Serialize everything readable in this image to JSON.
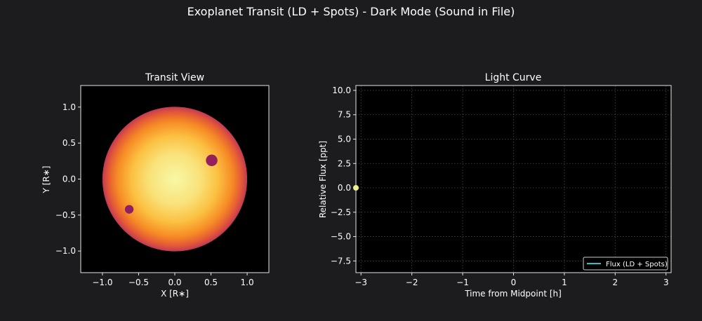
{
  "figure": {
    "suptitle": "Exoplanet Transit (LD + Spots) - Dark Mode (Sound in File)",
    "background_color": "#1c1b1e",
    "axes_background": "#000000",
    "text_color": "#ffffff"
  },
  "chart_data": [
    {
      "type": "heatmap",
      "title": "Transit View",
      "xlabel": "X [R∗]",
      "ylabel": "Y [R∗]",
      "xlim": [
        -1.3,
        1.3
      ],
      "ylim": [
        -1.3,
        1.3
      ],
      "xticks": [
        -1.0,
        -0.5,
        0.0,
        0.5,
        1.0
      ],
      "xtick_labels": [
        "−1.0",
        "−0.5",
        "0.0",
        "0.5",
        "1.0"
      ],
      "yticks": [
        -1.0,
        -0.5,
        0.0,
        0.5,
        1.0
      ],
      "ytick_labels": [
        "−1.0",
        "−0.5",
        "0.0",
        "0.5",
        "1.0"
      ],
      "star": {
        "center": [
          0.0,
          0.0
        ],
        "radius": 1.0,
        "colormap": "inferno",
        "limb_darkening": true,
        "center_color": "#f7f8a6",
        "edge_color": "#c23a55"
      },
      "spots": [
        {
          "x": 0.51,
          "y": 0.26,
          "radius": 0.08,
          "color": "#94215c"
        },
        {
          "x": -0.63,
          "y": -0.42,
          "radius": 0.06,
          "color": "#8e2061"
        }
      ]
    },
    {
      "type": "line",
      "title": "Light Curve",
      "xlabel": "Time from Midpoint [h]",
      "ylabel": "Relative Flux [ppt]",
      "xlim": [
        -3.1,
        3.1
      ],
      "ylim": [
        -8.7,
        10.5
      ],
      "xticks": [
        -3,
        -2,
        -1,
        0,
        1,
        2,
        3
      ],
      "xtick_labels": [
        "−3",
        "−2",
        "−1",
        "0",
        "1",
        "2",
        "3"
      ],
      "yticks": [
        -7.5,
        -5.0,
        -2.5,
        0.0,
        2.5,
        5.0,
        7.5,
        10.0
      ],
      "ytick_labels": [
        "−7.5",
        "−5.0",
        "−2.5",
        "0.0",
        "2.5",
        "5.0",
        "7.5",
        "10.0"
      ],
      "grid": true,
      "legend_position": "lower right",
      "series": [
        {
          "name": "Flux (LD + Spots)",
          "color": "#2ec4c4",
          "x": [
            -3.1
          ],
          "y": [
            0.0
          ]
        }
      ],
      "current_marker": {
        "x": -3.1,
        "y": 0.0,
        "color": "#f2f26b"
      }
    }
  ]
}
